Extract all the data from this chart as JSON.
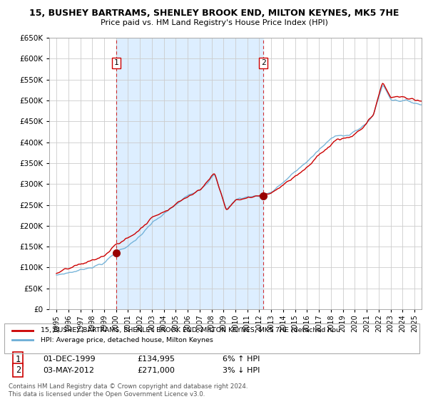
{
  "title": "15, BUSHEY BARTRAMS, SHENLEY BROOK END, MILTON KEYNES, MK5 7HE",
  "subtitle": "Price paid vs. HM Land Registry's House Price Index (HPI)",
  "ylim": [
    0,
    650000
  ],
  "yticks": [
    0,
    50000,
    100000,
    150000,
    200000,
    250000,
    300000,
    350000,
    400000,
    450000,
    500000,
    550000,
    600000,
    650000
  ],
  "sale1_year": 2000.0,
  "sale1_price": 134995,
  "sale1_label": "1",
  "sale2_year": 2012.35,
  "sale2_price": 271000,
  "sale2_label": "2",
  "hpi_color": "#6baed6",
  "price_color": "#cc0000",
  "shade_color": "#ddeeff",
  "sale_marker_color": "#990000",
  "dashed_line_color": "#cc0000",
  "background_color": "#ffffff",
  "grid_color": "#cccccc",
  "legend_line1": "15, BUSHEY BARTRAMS, SHENLEY BROOK END, MILTON KEYNES, MK5 7HE (detached hou",
  "legend_line2": "HPI: Average price, detached house, Milton Keynes",
  "table_row1": [
    "1",
    "01-DEC-1999",
    "£134,995",
    "6% ↑ HPI"
  ],
  "table_row2": [
    "2",
    "03-MAY-2012",
    "£271,000",
    "3% ↓ HPI"
  ],
  "footer": "Contains HM Land Registry data © Crown copyright and database right 2024.\nThis data is licensed under the Open Government Licence v3.0."
}
